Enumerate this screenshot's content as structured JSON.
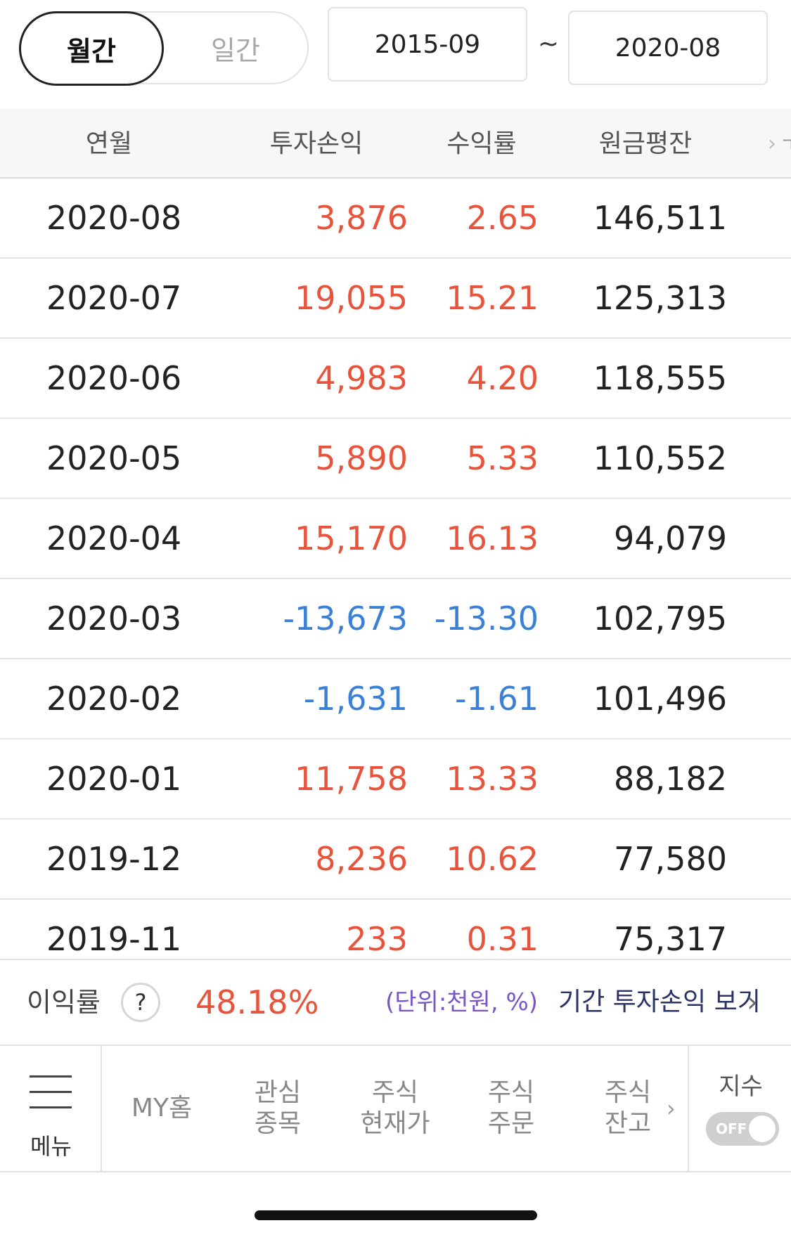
{
  "toggle": {
    "monthly": "월간",
    "daily": "일간"
  },
  "range": {
    "start": "2015-09",
    "sep": "~",
    "end": "2020-08"
  },
  "columns": {
    "month": "연월",
    "profit": "투자손익",
    "rate": "수익률",
    "principal": "원금평잔"
  },
  "rows": [
    {
      "month": "2020-08",
      "profit": "3,876",
      "rate": "2.65",
      "principal": "146,511",
      "sign": "pos"
    },
    {
      "month": "2020-07",
      "profit": "19,055",
      "rate": "15.21",
      "principal": "125,313",
      "sign": "pos"
    },
    {
      "month": "2020-06",
      "profit": "4,983",
      "rate": "4.20",
      "principal": "118,555",
      "sign": "pos"
    },
    {
      "month": "2020-05",
      "profit": "5,890",
      "rate": "5.33",
      "principal": "110,552",
      "sign": "pos"
    },
    {
      "month": "2020-04",
      "profit": "15,170",
      "rate": "16.13",
      "principal": "94,079",
      "sign": "pos"
    },
    {
      "month": "2020-03",
      "profit": "-13,673",
      "rate": "-13.30",
      "principal": "102,795",
      "sign": "neg"
    },
    {
      "month": "2020-02",
      "profit": "-1,631",
      "rate": "-1.61",
      "principal": "101,496",
      "sign": "neg"
    },
    {
      "month": "2020-01",
      "profit": "11,758",
      "rate": "13.33",
      "principal": "88,182",
      "sign": "pos"
    },
    {
      "month": "2019-12",
      "profit": "8,236",
      "rate": "10.62",
      "principal": "77,580",
      "sign": "pos"
    },
    {
      "month": "2019-11",
      "profit": "233",
      "rate": "0.31",
      "principal": "75,317",
      "sign": "pos"
    }
  ],
  "summary": {
    "label": "이익률",
    "help": "?",
    "value": "48.18%",
    "unit": "(단위:천원, %)",
    "period_link": "기간 투자손익 보기"
  },
  "nav": {
    "menu": "메뉴",
    "my_home": "MY홈",
    "watch": [
      "관심",
      "종목"
    ],
    "price": [
      "주식",
      "현재가"
    ],
    "order": [
      "주식",
      "주문"
    ],
    "balance": [
      "주식",
      "잔고"
    ],
    "index": "지수",
    "index_toggle": "OFF"
  },
  "colors": {
    "positive": "#e8533b",
    "negative": "#3a80d6"
  }
}
